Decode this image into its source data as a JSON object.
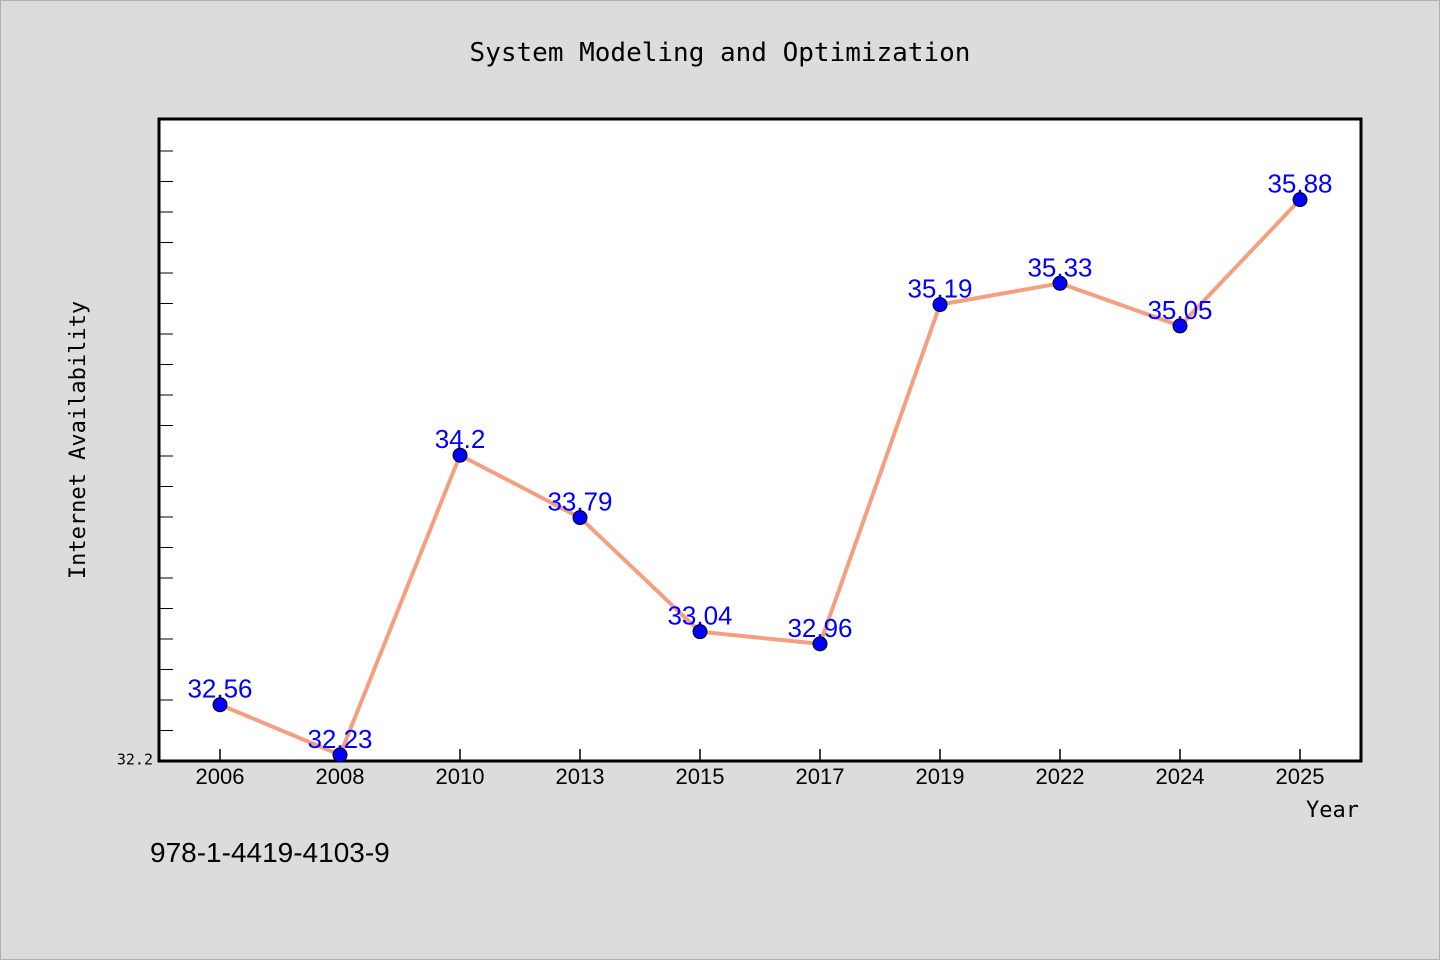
{
  "chart_data": {
    "type": "line",
    "title": "System Modeling and Optimization",
    "xlabel": "Year",
    "ylabel": "Internet Availability",
    "categories": [
      "2006",
      "2008",
      "2010",
      "2013",
      "2015",
      "2017",
      "2019",
      "2022",
      "2024",
      "2025"
    ],
    "series": [
      {
        "values": [
          32.56,
          32.23,
          34.2,
          33.79,
          33.04,
          32.96,
          35.19,
          35.33,
          35.05,
          35.88
        ],
        "labels": [
          "32.56",
          "32.23",
          "34.2",
          "33.79",
          "33.04",
          "32.96",
          "35.19",
          "35.33",
          "35.05",
          "35.88"
        ],
        "line_color": "#f4a080",
        "marker_color": "#0000ff"
      }
    ],
    "ylim": [
      32.19,
      36.41
    ],
    "ytick_labels": [
      {
        "value": 32.2,
        "label": "32.2"
      }
    ],
    "grid": false,
    "legend": "none"
  },
  "footer_text": "978-1-4419-4103-9"
}
